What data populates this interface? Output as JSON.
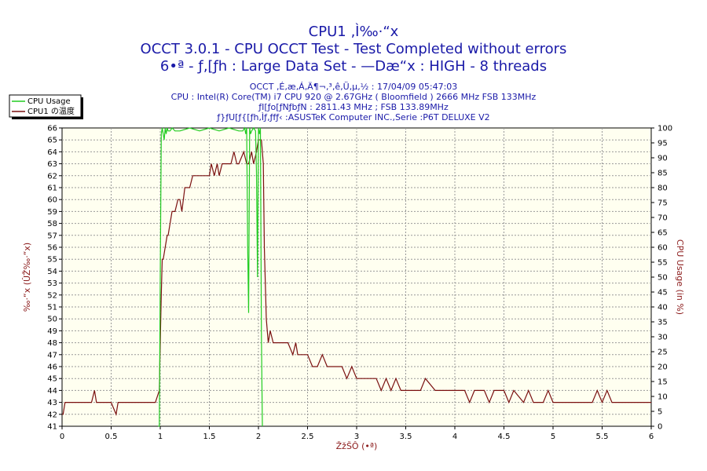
{
  "chart_data": {
    "type": "line",
    "title_lines": [
      "CPU1 ‚Ì‰·“x",
      "OCCT 3.0.1 - CPU OCCT Test - Test Completed without errors",
      "6•ª - ƒ‚[ƒh : Large Data Set - —Dæ“x : HIGH - 8 threads"
    ],
    "info_lines": [
      "OCCT ‚É‚æ‚Á‚Ä¶¬‚³‚ê‚Ü‚µ‚½ : 17/04/09 05:47:03",
      "CPU : Intel(R) Core(TM) i7 CPU 920 @ 2.67GHz ( Bloomfield ) 2666 MHz FSB 133MHz",
      "ƒI[ƒo[ƒNƒbƒN : 2811.43 MHz ; FSB 133.89MHz",
      "ƒ}ƒU[ƒ{[ƒh‚Ìƒ‚ƒfƒ‹ :ASUSTeK Computer INC.,Serie :P6T DELUXE V2"
    ],
    "xlabel": "ŽžŠÔ (•ª)",
    "ylabel_left": "‰·“x (ÛŽ‰·“x)",
    "ylabel_right": "CPU Usage (in %)",
    "xlim": [
      0,
      6
    ],
    "ylim_left": [
      41,
      66
    ],
    "ylim_right": [
      0,
      100
    ],
    "x_ticks": [
      "0",
      "0.5",
      "1",
      "1.5",
      "2",
      "2.5",
      "3",
      "3.5",
      "4",
      "4.5",
      "5",
      "5.5",
      "6"
    ],
    "y_ticks_left": [
      "41",
      "42",
      "43",
      "44",
      "45",
      "46",
      "47",
      "48",
      "49",
      "50",
      "51",
      "52",
      "53",
      "54",
      "55",
      "56",
      "57",
      "58",
      "59",
      "60",
      "61",
      "62",
      "63",
      "64",
      "65",
      "66"
    ],
    "y_ticks_right": [
      "0",
      "5",
      "10",
      "15",
      "20",
      "25",
      "30",
      "35",
      "40",
      "45",
      "50",
      "55",
      "60",
      "65",
      "70",
      "75",
      "80",
      "85",
      "90",
      "95",
      "100"
    ],
    "grid": true,
    "legend_position": "top-left",
    "series": [
      {
        "name": "CPU Usage",
        "axis": "right",
        "color": "#22cc22",
        "x": [
          0.98,
          0.99,
          1.0,
          1.01,
          1.02,
          1.04,
          1.05,
          1.06,
          1.07,
          1.08,
          1.1,
          1.12,
          1.15,
          1.2,
          1.3,
          1.4,
          1.5,
          1.6,
          1.7,
          1.8,
          1.84,
          1.86,
          1.87,
          1.88,
          1.89,
          1.9,
          1.91,
          1.92,
          1.93,
          1.95,
          1.97,
          1.98,
          1.99,
          2.0,
          2.01,
          2.02,
          2.03,
          2.04
        ],
        "y": [
          0,
          0,
          50,
          98,
          100,
          96,
          100,
          98,
          100,
          99,
          99,
          100,
          99,
          99,
          100,
          99,
          100,
          99,
          100,
          99,
          99,
          100,
          98,
          100,
          60,
          38,
          100,
          98,
          99,
          100,
          99,
          85,
          50,
          100,
          98,
          100,
          30,
          0
        ]
      },
      {
        "name": "CPU1 の温度",
        "axis": "left",
        "color": "#7a1010",
        "x": [
          0.0,
          0.01,
          0.03,
          0.05,
          0.3,
          0.33,
          0.35,
          0.38,
          0.5,
          0.55,
          0.57,
          0.6,
          0.95,
          0.99,
          1.0,
          1.01,
          1.02,
          1.03,
          1.05,
          1.07,
          1.08,
          1.1,
          1.12,
          1.15,
          1.18,
          1.2,
          1.22,
          1.25,
          1.3,
          1.33,
          1.38,
          1.42,
          1.5,
          1.52,
          1.55,
          1.58,
          1.6,
          1.63,
          1.65,
          1.7,
          1.72,
          1.75,
          1.78,
          1.8,
          1.85,
          1.88,
          1.9,
          1.93,
          1.95,
          1.98,
          2.0,
          2.03,
          2.05,
          2.06,
          2.08,
          2.1,
          2.12,
          2.15,
          2.2,
          2.3,
          2.35,
          2.38,
          2.4,
          2.5,
          2.55,
          2.6,
          2.65,
          2.7,
          2.75,
          2.8,
          2.85,
          2.9,
          2.95,
          3.0,
          3.1,
          3.2,
          3.25,
          3.3,
          3.35,
          3.4,
          3.45,
          3.5,
          3.6,
          3.65,
          3.7,
          3.8,
          3.9,
          4.0,
          4.1,
          4.15,
          4.2,
          4.3,
          4.35,
          4.4,
          4.5,
          4.55,
          4.6,
          4.7,
          4.75,
          4.8,
          4.9,
          4.95,
          5.0,
          5.05,
          5.1,
          5.2,
          5.3,
          5.4,
          5.45,
          5.5,
          5.55,
          5.6,
          5.7,
          5.8,
          5.9,
          6.0
        ],
        "y": [
          42,
          42,
          43,
          43,
          43,
          44,
          43,
          43,
          43,
          42,
          43,
          43,
          43,
          44,
          48,
          52,
          55,
          55,
          56,
          57,
          57,
          58,
          59,
          59,
          60,
          60,
          59,
          61,
          61,
          62,
          62,
          62,
          62,
          63,
          62,
          63,
          62,
          63,
          63,
          63,
          63,
          64,
          63,
          63,
          64,
          63,
          63,
          64,
          63,
          64,
          65,
          65,
          63,
          56,
          50,
          48,
          49,
          48,
          48,
          48,
          47,
          48,
          47,
          47,
          46,
          46,
          47,
          46,
          46,
          46,
          46,
          45,
          46,
          45,
          45,
          45,
          44,
          45,
          44,
          45,
          44,
          44,
          44,
          44,
          45,
          44,
          44,
          44,
          44,
          43,
          44,
          44,
          43,
          44,
          44,
          43,
          44,
          43,
          44,
          43,
          43,
          44,
          43,
          43,
          43,
          43,
          43,
          43,
          44,
          43,
          44,
          43,
          43,
          43,
          43,
          43
        ]
      }
    ]
  }
}
